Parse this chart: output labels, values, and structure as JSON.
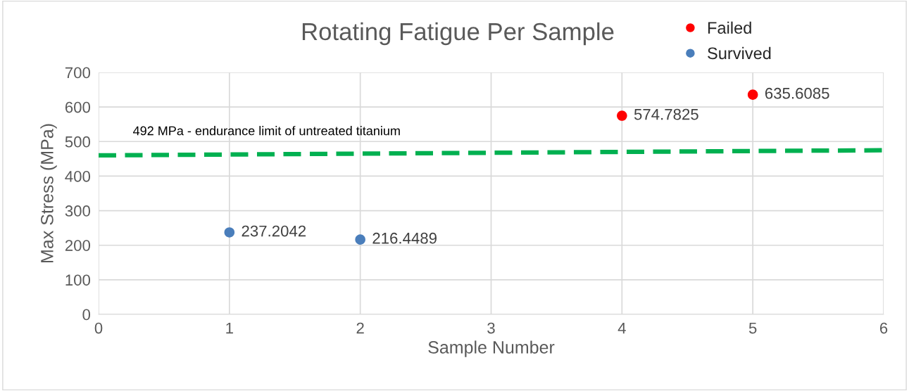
{
  "chart_data": {
    "type": "scatter",
    "title": "Rotating Fatigue Per Sample",
    "xlabel": "Sample Number",
    "ylabel": "Max Stress (MPa)",
    "series": [
      {
        "name": "Failed",
        "color": "#ff0000",
        "x": [
          4,
          5
        ],
        "values": [
          574.7825,
          635.6085
        ],
        "value_labels": [
          "574.7825",
          "635.6085"
        ]
      },
      {
        "name": "Survived",
        "color": "#4a7ebb",
        "x": [
          1,
          2
        ],
        "values": [
          237.2042,
          216.4489
        ],
        "value_labels": [
          "237.2042",
          "216.4489"
        ]
      },
      {
        "type": "line",
        "color": "#00b050",
        "line_style": "dashed",
        "marker": "none",
        "x": [
          0,
          6
        ],
        "values": [
          460,
          475
        ]
      }
    ],
    "annotations": [
      "492 MPa - endurance limit of untreated titanium"
    ],
    "marker": "circle",
    "xlim": [
      0,
      6
    ],
    "xticks": [
      0,
      1,
      2,
      3,
      4,
      5,
      6
    ],
    "ylim": [
      0,
      700
    ],
    "yticks": [
      0,
      100,
      200,
      300,
      400,
      500,
      600,
      700
    ],
    "grid": true,
    "legend": "top right"
  }
}
